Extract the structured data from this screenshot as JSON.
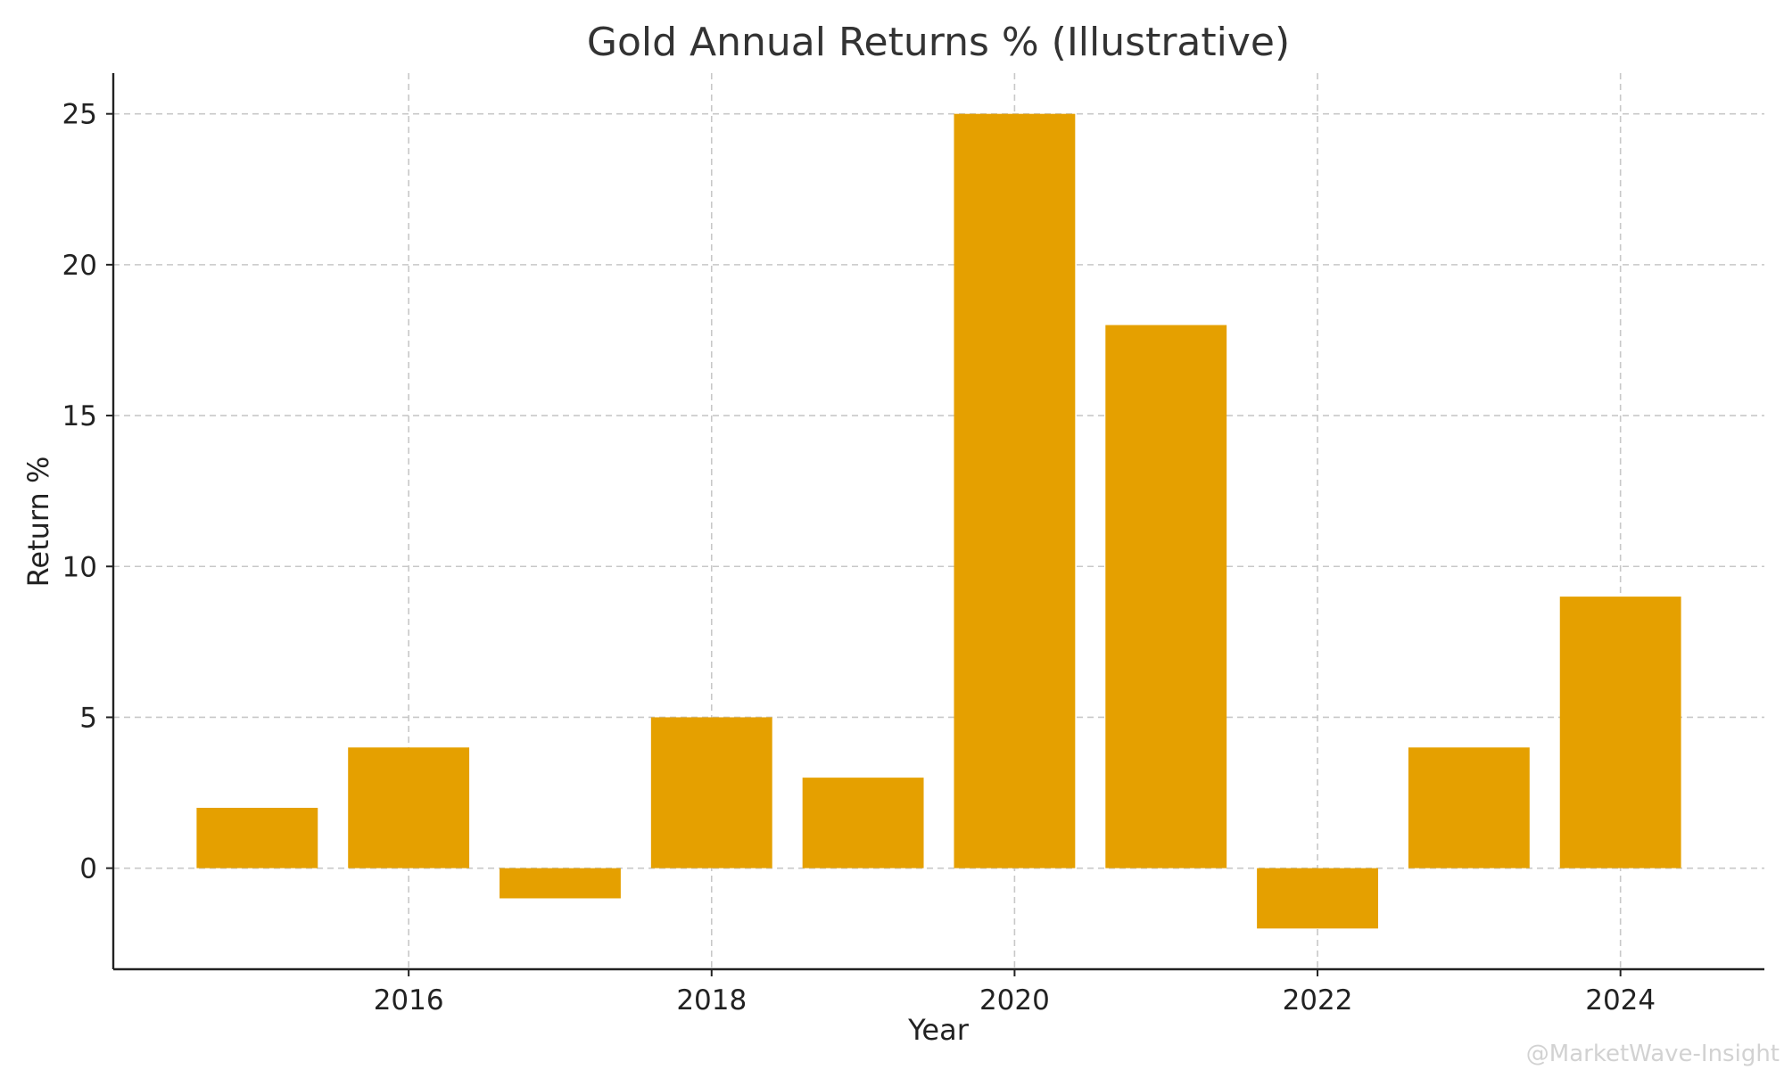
{
  "chart_data": {
    "type": "bar",
    "title": "Gold Annual Returns % (Illustrative)",
    "xlabel": "Year",
    "ylabel": "Return %",
    "x": [
      2015,
      2016,
      2017,
      2018,
      2019,
      2020,
      2021,
      2022,
      2023,
      2024
    ],
    "values": [
      2,
      4,
      -1,
      5,
      3,
      25,
      18,
      -2,
      4,
      9
    ],
    "xlim": [
      2014.05,
      2024.95
    ],
    "ylim": [
      -3.35,
      26.35
    ],
    "xticks": [
      2016,
      2018,
      2020,
      2022,
      2024
    ],
    "yticks": [
      0,
      5,
      10,
      15,
      20,
      25
    ],
    "grid": true,
    "bar_color": "#e5a000",
    "watermark": "@MarketWave-Insight"
  }
}
